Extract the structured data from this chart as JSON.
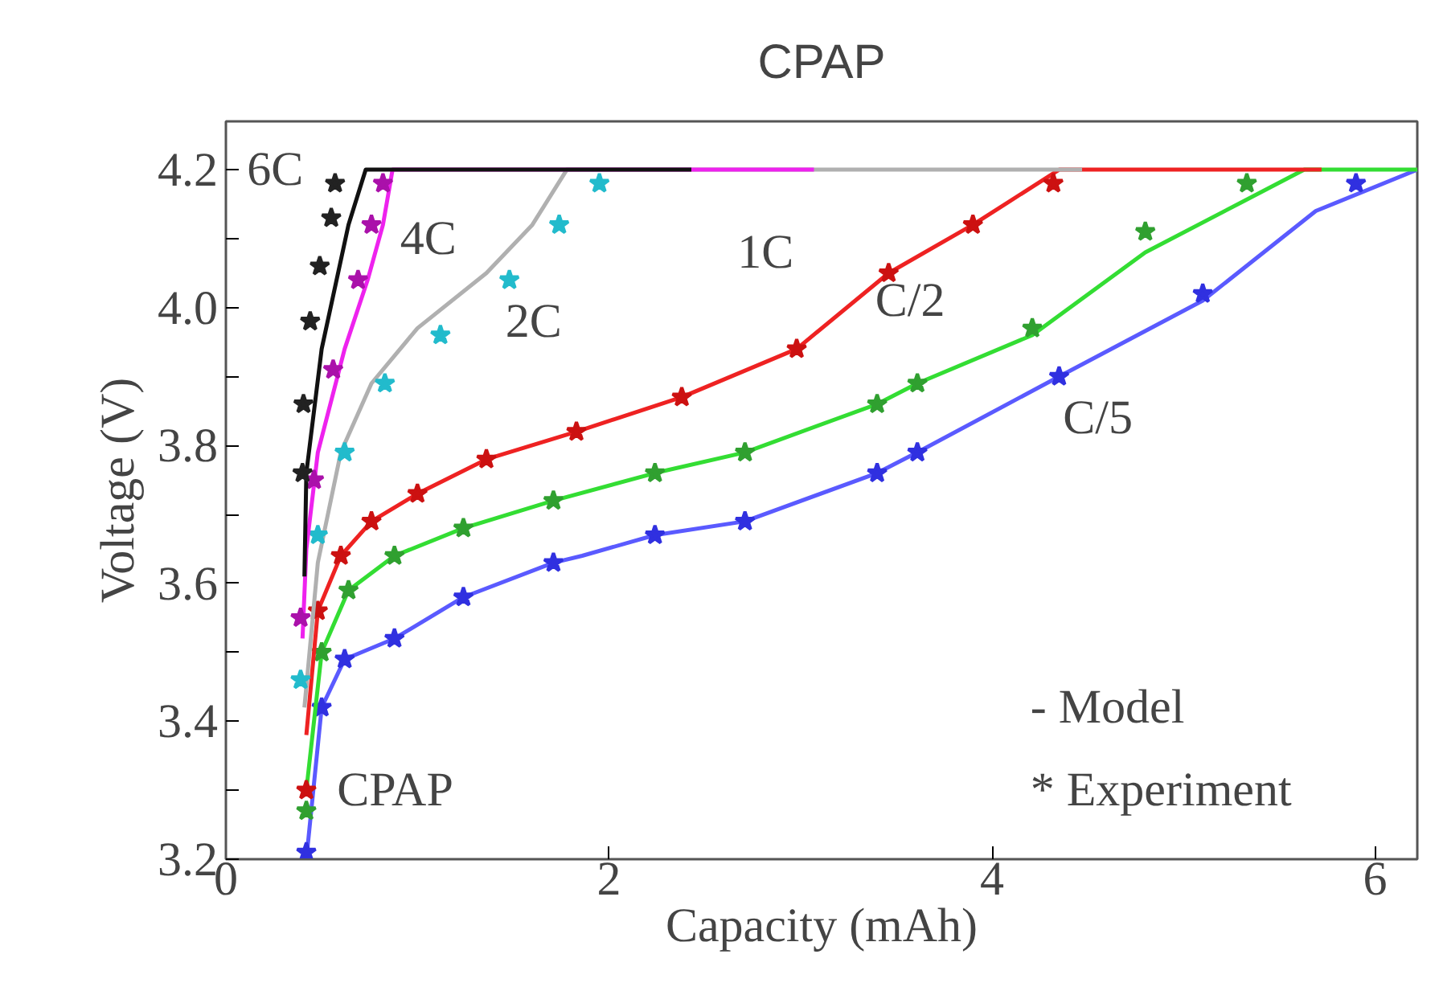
{
  "chart_data": {
    "type": "line",
    "title": "CPAP",
    "xlabel": "Capacity (mAh)",
    "ylabel": "Voltage (V)",
    "xlim": [
      0,
      6.22
    ],
    "xticks": [
      0,
      2,
      4,
      6
    ],
    "ylim": [
      3.2,
      4.27
    ],
    "yticks": [
      3.2,
      {
        "value": 3.3,
        "label": null
      },
      3.4,
      {
        "value": 3.5,
        "label": null
      },
      3.6,
      {
        "value": 3.7,
        "label": null
      },
      3.8,
      {
        "value": 3.9,
        "label": null
      },
      {
        "value": 4.0,
        "label": "4.0"
      },
      {
        "value": 4.1,
        "label": null
      },
      4.2
    ],
    "grid": false,
    "series": [
      {
        "type": "line",
        "marker": "none",
        "color": "#5a5aff",
        "x": [
          0.42,
          0.5,
          0.62,
          0.88,
          1.24,
          1.71,
          1.86,
          2.24,
          2.71,
          3.4,
          3.61,
          4.35,
          5.1,
          5.69,
          6.22
        ],
        "values": [
          3.2,
          3.42,
          3.49,
          3.52,
          3.58,
          3.63,
          3.64,
          3.67,
          3.69,
          3.76,
          3.79,
          3.9,
          4.01,
          4.14,
          4.2
        ]
      },
      {
        "type": "scatter",
        "marker": "star",
        "color": "#3030e0",
        "x": [
          0.42,
          0.5,
          0.62,
          0.88,
          1.24,
          1.71,
          2.24,
          2.71,
          3.4,
          3.61,
          4.35,
          5.1,
          5.9
        ],
        "values": [
          3.21,
          3.42,
          3.49,
          3.52,
          3.58,
          3.63,
          3.67,
          3.69,
          3.76,
          3.79,
          3.9,
          4.02,
          4.18
        ]
      },
      {
        "type": "line",
        "marker": "none",
        "color": "#33dd33",
        "x": [
          0.42,
          0.5,
          0.64,
          0.88,
          1.24,
          1.71,
          2.24,
          2.71,
          3.4,
          3.61,
          4.21,
          4.8,
          5.63,
          6.22
        ],
        "values": [
          3.3,
          3.5,
          3.59,
          3.64,
          3.68,
          3.72,
          3.76,
          3.79,
          3.86,
          3.89,
          3.96,
          4.08,
          4.2,
          4.2
        ]
      },
      {
        "type": "scatter",
        "marker": "star",
        "color": "#30a030",
        "x": [
          0.42,
          0.5,
          0.64,
          0.88,
          1.24,
          1.71,
          2.24,
          2.71,
          3.4,
          3.61,
          4.21,
          4.8,
          5.33
        ],
        "values": [
          3.27,
          3.5,
          3.59,
          3.64,
          3.68,
          3.72,
          3.76,
          3.79,
          3.86,
          3.89,
          3.97,
          4.11,
          4.18
        ]
      },
      {
        "type": "line",
        "marker": "none",
        "color": "#ee2222",
        "x": [
          0.42,
          0.48,
          0.6,
          0.76,
          1.0,
          1.36,
          1.83,
          2.38,
          2.98,
          3.46,
          3.9,
          4.35,
          5.72
        ],
        "values": [
          3.38,
          3.56,
          3.64,
          3.69,
          3.73,
          3.78,
          3.82,
          3.87,
          3.94,
          4.05,
          4.12,
          4.2,
          4.2
        ]
      },
      {
        "type": "scatter",
        "marker": "star",
        "color": "#cc1111",
        "x": [
          0.42,
          0.48,
          0.6,
          0.76,
          1.0,
          1.36,
          1.83,
          2.38,
          2.98,
          3.46,
          3.9,
          4.32
        ],
        "values": [
          3.3,
          3.56,
          3.64,
          3.69,
          3.73,
          3.78,
          3.82,
          3.87,
          3.94,
          4.05,
          4.12,
          4.18
        ]
      },
      {
        "type": "line",
        "marker": "none",
        "color": "#b0b0b0",
        "x": [
          0.41,
          0.48,
          0.6,
          0.76,
          1.0,
          1.36,
          1.6,
          1.78,
          4.47
        ],
        "values": [
          3.42,
          3.63,
          3.79,
          3.89,
          3.97,
          4.05,
          4.12,
          4.2,
          4.2
        ]
      },
      {
        "type": "scatter",
        "marker": "star",
        "color": "#22bbcc",
        "x": [
          0.39,
          0.48,
          0.62,
          0.83,
          1.12,
          1.48,
          1.74,
          1.95
        ],
        "values": [
          3.46,
          3.67,
          3.79,
          3.89,
          3.96,
          4.04,
          4.12,
          4.18
        ]
      },
      {
        "type": "line",
        "marker": "none",
        "color": "#ee22ee",
        "x": [
          0.4,
          0.42,
          0.48,
          0.62,
          0.74,
          0.82,
          0.87,
          3.07
        ],
        "values": [
          3.52,
          3.65,
          3.79,
          3.94,
          4.04,
          4.12,
          4.2,
          4.2
        ]
      },
      {
        "type": "scatter",
        "marker": "star",
        "color": "#aa11aa",
        "x": [
          0.39,
          0.46,
          0.56,
          0.69,
          0.76,
          0.82
        ],
        "values": [
          3.55,
          3.75,
          3.91,
          4.04,
          4.12,
          4.18
        ]
      },
      {
        "type": "line",
        "marker": "none",
        "color": "#111111",
        "x": [
          0.41,
          0.42,
          0.5,
          0.64,
          0.73,
          2.43
        ],
        "values": [
          3.61,
          3.76,
          3.94,
          4.12,
          4.2,
          4.2
        ]
      },
      {
        "type": "scatter",
        "marker": "star",
        "color": "#222222",
        "x": [
          0.4,
          0.405,
          0.44,
          0.49,
          0.55,
          0.57
        ],
        "values": [
          3.76,
          3.86,
          3.98,
          4.06,
          4.13,
          4.18
        ]
      }
    ],
    "annotations": [
      "6C",
      "4C",
      "2C",
      "1C",
      "C/2",
      "C/5",
      "CPAP",
      "- Model",
      "* Experiment"
    ]
  }
}
